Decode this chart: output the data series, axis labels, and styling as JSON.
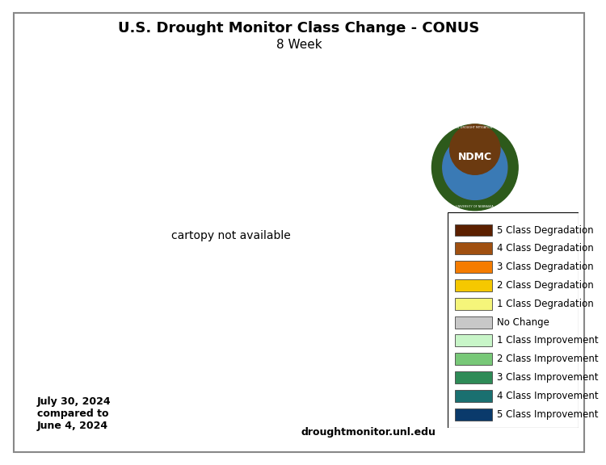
{
  "title_line1": "U.S. Drought Monitor Class Change - CONUS",
  "title_line2": "8 Week",
  "date_text": "July 30, 2024\ncompared to\nJune 4, 2024",
  "website_text": "droughtmonitor.unl.edu",
  "legend_entries": [
    {
      "label": "5 Class Degradation",
      "color": "#5c2000"
    },
    {
      "label": "4 Class Degradation",
      "color": "#a05010"
    },
    {
      "label": "3 Class Degradation",
      "color": "#f57c00"
    },
    {
      "label": "2 Class Degradation",
      "color": "#f5c800"
    },
    {
      "label": "1 Class Degradation",
      "color": "#f5f57a"
    },
    {
      "label": "No Change",
      "color": "#c8c8c8"
    },
    {
      "label": "1 Class Improvement",
      "color": "#c8f5c8"
    },
    {
      "label": "2 Class Improvement",
      "color": "#78c878"
    },
    {
      "label": "3 Class Improvement",
      "color": "#2e8b57"
    },
    {
      "label": "4 Class Improvement",
      "color": "#1a7070"
    },
    {
      "label": "5 Class Improvement",
      "color": "#0a3a6b"
    }
  ],
  "background_color": "#ffffff",
  "border_color": "#888888",
  "title_fontsize": 13,
  "subtitle_fontsize": 11,
  "legend_fontsize": 8.5,
  "date_fontsize": 9,
  "website_fontsize": 9,
  "map_extent": [
    -125,
    -66.5,
    24,
    50
  ],
  "map_bg": "#ffffff"
}
